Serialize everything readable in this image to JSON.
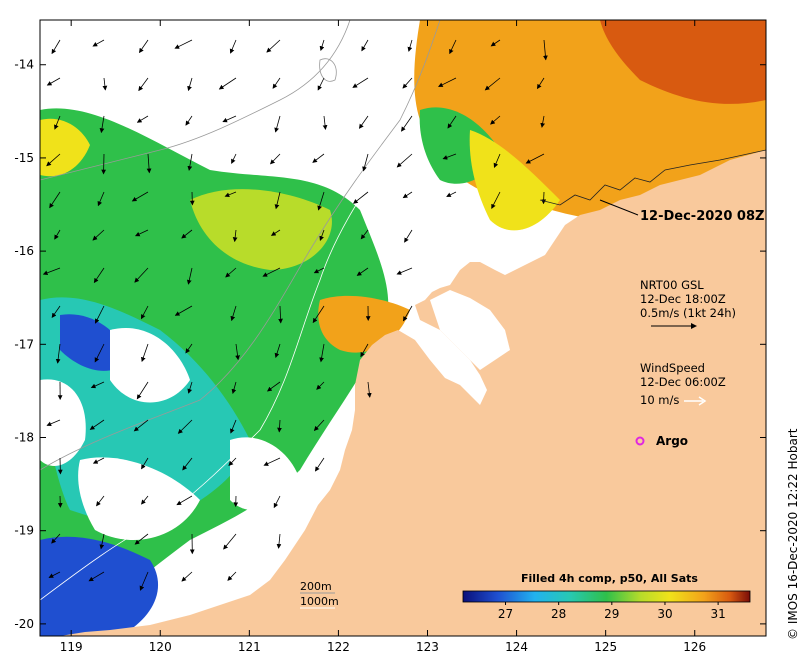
{
  "map": {
    "lon_ticks": [
      "119",
      "120",
      "121",
      "122",
      "123",
      "124",
      "125",
      "126"
    ],
    "lat_ticks": [
      "-14",
      "-15",
      "-16",
      "-17",
      "-18",
      "-19",
      "-20"
    ],
    "lon_range": [
      118.65,
      126.8
    ],
    "lat_range": [
      -20.13,
      -13.52
    ]
  },
  "annotations": {
    "timestamp": "12-Dec-2020 08Z",
    "current_title": "NRT00 GSL",
    "current_time": "12-Dec 18:00Z",
    "current_scale": "0.5m/s (1kt 24h)",
    "wind_title": "WindSpeed",
    "wind_time": "12-Dec 06:00Z",
    "wind_scale": "10 m/s",
    "argo_label": "Argo",
    "depth_200": "200m",
    "depth_1000": "1000m",
    "credit": "© IMOS 16-Dec-2020 12:22 Hobart"
  },
  "colorbar": {
    "title": "Filled 4h comp, p50, All Sats",
    "ticks": [
      "27",
      "28",
      "29",
      "30",
      "31"
    ],
    "range": [
      26.2,
      31.6
    ]
  },
  "colors": {
    "land": "#f9c99c",
    "sea_no_data": "#ffffff",
    "argo": "#e026e0",
    "current_arrow": "#000000",
    "wind_arrow": "#ffffff"
  }
}
